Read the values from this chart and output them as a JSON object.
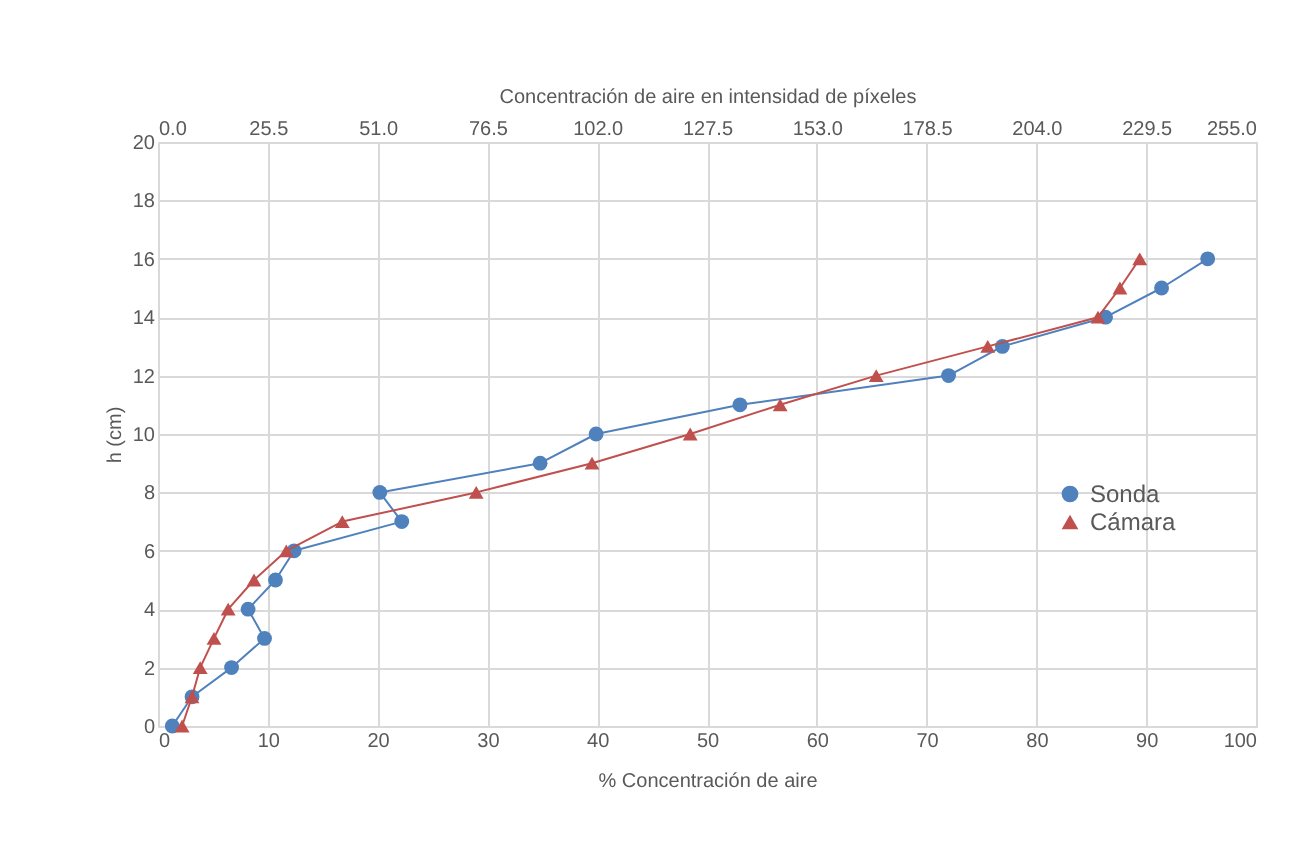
{
  "chart_data": {
    "type": "line",
    "xlabel": "% Concentración de aire",
    "x2label": "Concentración de aire en intensidad de píxeles",
    "ylabel": "h (cm)",
    "xlim": [
      0,
      100
    ],
    "xticks": [
      0,
      10,
      20,
      30,
      40,
      50,
      60,
      70,
      80,
      90,
      100
    ],
    "x2lim": [
      0,
      255
    ],
    "x2ticks": [
      {
        "value": 0,
        "label": "0.0"
      },
      25.5,
      {
        "value": 51,
        "label": "51.0"
      },
      76.5,
      {
        "value": 102,
        "label": "102.0"
      },
      127.5,
      {
        "value": 153,
        "label": "153.0"
      },
      178.5,
      {
        "value": 204,
        "label": "204.0"
      },
      229.5,
      {
        "value": 255,
        "label": "255.0"
      }
    ],
    "ylim": [
      0,
      20
    ],
    "yticks": [
      0,
      2,
      4,
      6,
      8,
      10,
      12,
      14,
      16,
      18,
      20
    ],
    "grid": true,
    "legend": "right",
    "line_style": "solid",
    "series": [
      {
        "name": "Sonda",
        "color": "#4f81bd",
        "marker": "circle",
        "x": [
          1.3,
          3.1,
          6.7,
          9.7,
          8.2,
          10.7,
          12.4,
          22.2,
          20.2,
          34.8,
          39.9,
          53,
          72,
          76.9,
          86.3,
          91.4,
          95.6
        ],
        "values": [
          0,
          1,
          2,
          3,
          4,
          5,
          6,
          7,
          8,
          9,
          10,
          11,
          12,
          13,
          14,
          15,
          16
        ]
      },
      {
        "name": "Cámara",
        "color": "#c0504d",
        "marker": "triangle",
        "axis": "x2",
        "x": [
          5.6,
          7.9,
          9.8,
          13,
          16.3,
          22.3,
          29.8,
          42.8,
          73.9,
          100.8,
          123.6,
          144.5,
          166.8,
          192.7,
          218.3,
          223.4,
          228
        ],
        "values": [
          0,
          1,
          2,
          3,
          4,
          5,
          6,
          7,
          8,
          9,
          10,
          11,
          12,
          13,
          14,
          15,
          16
        ]
      }
    ]
  }
}
